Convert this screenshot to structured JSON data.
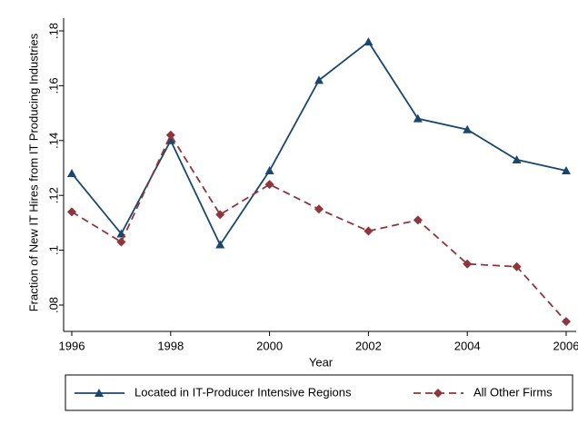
{
  "chart_data": {
    "type": "line",
    "y_label": "Fraction of New IT Hires from IT Producing Industries",
    "x_label": "Year",
    "x": [
      1996,
      1997,
      1998,
      1999,
      2000,
      2001,
      2002,
      2003,
      2004,
      2005,
      2006
    ],
    "xlim": [
      1996,
      2006
    ],
    "xticks": [
      1996,
      1998,
      2000,
      2002,
      2004,
      2006
    ],
    "ylim": [
      0.08,
      0.18
    ],
    "yticks": [
      {
        "value": 0.08,
        "label": ".08"
      },
      {
        "value": 0.1,
        "label": ".1"
      },
      {
        "value": 0.12,
        "label": ".12"
      },
      {
        "value": 0.14,
        "label": ".14"
      },
      {
        "value": 0.16,
        "label": ".16"
      },
      {
        "value": 0.18,
        "label": ".18"
      }
    ],
    "grid": false,
    "legend": "bottom",
    "series": [
      {
        "name": "Located in IT-Producer Intensive Regions",
        "color": "#1a476f",
        "marker": "triangle",
        "dash": "solid",
        "values": [
          0.128,
          0.106,
          0.14,
          0.102,
          0.129,
          0.162,
          0.176,
          0.148,
          0.144,
          0.133,
          0.129
        ]
      },
      {
        "name": "All Other Firms",
        "color": "#90353b",
        "marker": "diamond",
        "dash": "dashed",
        "values": [
          0.114,
          0.103,
          0.142,
          0.113,
          0.124,
          0.115,
          0.107,
          0.111,
          0.095,
          0.094,
          0.074
        ]
      }
    ]
  }
}
